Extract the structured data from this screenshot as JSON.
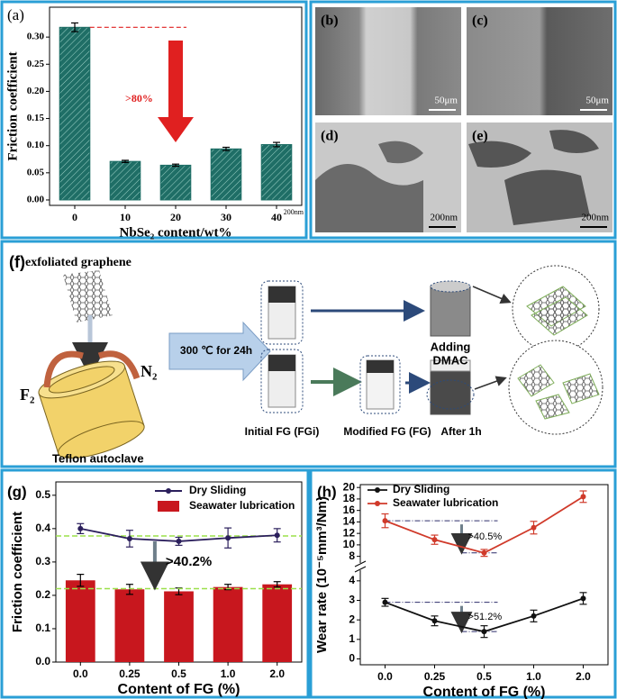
{
  "chart_data": [
    {
      "type": "bar",
      "panel": "(a)",
      "categories": [
        "0",
        "10",
        "20",
        "30",
        "40"
      ],
      "values": [
        0.318,
        0.071,
        0.064,
        0.094,
        0.102
      ],
      "errors": [
        0.008,
        0.002,
        0.002,
        0.003,
        0.004
      ],
      "color": "#1f6e66",
      "xlabel": "NbSe₂ content/wt%",
      "ylabel": "Friction coefficient",
      "ylim": [
        -0.01,
        0.355
      ],
      "yticks": [
        {
          "value": 0,
          "label": "0.00"
        },
        0.05,
        {
          "value": 0.1,
          "label": "0.10"
        },
        0.15,
        {
          "value": 0.2,
          "label": "0.20"
        },
        0.25,
        {
          "value": 0.3,
          "label": "0.30"
        }
      ],
      "annotations": [
        ">80%",
        "200nm"
      ],
      "annotation_color": "#e02020"
    },
    {
      "type": "combo",
      "panel": "(g)",
      "categories": [
        "0.0",
        "0.25",
        "0.5",
        "1.0",
        "2.0"
      ],
      "series": [
        {
          "name": "Dry Sliding",
          "type": "line",
          "color": "#2b1f5c",
          "values": [
            0.4,
            0.37,
            0.362,
            0.372,
            0.38
          ],
          "errors": [
            0.015,
            0.025,
            0.012,
            0.03,
            0.02
          ]
        },
        {
          "name": "Seawater lubrication",
          "type": "bar",
          "color": "#c8171e",
          "values": [
            0.245,
            0.218,
            0.212,
            0.225,
            0.233
          ],
          "errors": [
            0.018,
            0.015,
            0.01,
            0.008,
            0.008
          ]
        }
      ],
      "xlabel": "Content of FG (%)",
      "ylabel": "Friction coefficient",
      "ylim": [
        0,
        0.54
      ],
      "yticks": [
        {
          "value": 0,
          "label": "0.0"
        },
        0.1,
        0.2,
        0.3,
        0.4,
        0.5
      ],
      "reference_lines": [
        0.378,
        0.22
      ],
      "reference_color": "#9be04a",
      "annotations": [
        ">40.2%"
      ]
    },
    {
      "type": "line",
      "panel": "(h)",
      "categories": [
        "0.0",
        "0.25",
        "0.5",
        "1.0",
        "2.0"
      ],
      "series": [
        {
          "name": "Dry Sliding",
          "color": "#111111",
          "values": [
            2.9,
            1.95,
            1.4,
            2.2,
            3.1
          ],
          "errors": [
            0.2,
            0.25,
            0.3,
            0.3,
            0.3
          ]
        },
        {
          "name": "Seawater lubrication",
          "color": "#d03a2a",
          "values": [
            14.2,
            10.9,
            8.6,
            13.0,
            18.4
          ],
          "errors": [
            1.2,
            0.8,
            0.6,
            1.1,
            1.0
          ]
        }
      ],
      "xlabel": "Content of FG (%)",
      "ylabel": "Wear rate (10⁻⁵mm³/Nm)",
      "ylim": [
        -0.3,
        20.5
      ],
      "ybreak": [
        4.5,
        7
      ],
      "yticks": [
        0,
        1,
        2,
        3,
        4,
        8,
        10,
        12,
        14,
        16,
        18,
        20
      ],
      "annotations": [
        ">51.2%",
        ">40.5%"
      ]
    }
  ],
  "images": [
    {
      "label": "(b)",
      "scale": "50μm"
    },
    {
      "label": "(c)",
      "scale": "50μm"
    },
    {
      "label": "(d)",
      "scale": "200nm"
    },
    {
      "label": "(e)",
      "scale": "200nm"
    }
  ],
  "diagram": {
    "panel": "(f)",
    "graphene": "exfoliated graphene",
    "gas_right": "N₂",
    "gas_left": "F₂",
    "vessel": "Teflon autoclave",
    "condition": "300 ℃ for 24h",
    "initial": "Initial FG (FGi)",
    "modified": "Modified FG (FG)",
    "adding": [
      "Adding",
      "DMAC"
    ],
    "after": "After 1h"
  }
}
